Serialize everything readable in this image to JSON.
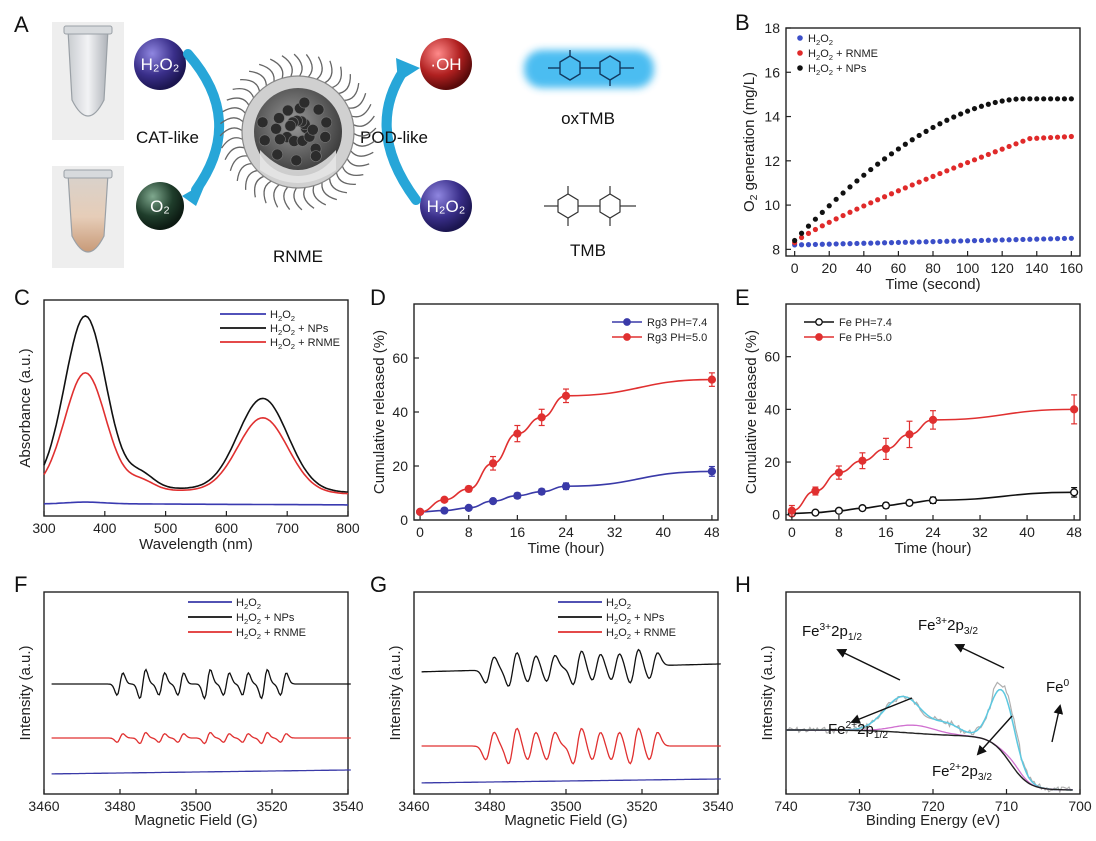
{
  "panels": {
    "A": {
      "label": "A",
      "molecule_left": "H₂O₂",
      "product_left": "O₂",
      "arrow_left_label": "CAT-like",
      "center_label": "RNME",
      "molecule_right": "H₂O₂",
      "product_right": "·OH",
      "arrow_right_label": "POD-like",
      "oxidized_label": "oxTMB",
      "reduced_label": "TMB",
      "colors": {
        "h2o2_sphere": "#3a2f8a",
        "oh_sphere": "#b02020",
        "o2_sphere": "#1f3d2b",
        "arrow": "#27a6d8",
        "oxtmb_glow": "#39b6f0"
      }
    },
    "F": {
      "label": "F",
      "type": "line",
      "xlabel": "Magnetic Field (G)",
      "ylabel": "Intensity (a.u.)",
      "xlim": [
        3460,
        3540
      ],
      "xticks": [
        "3460",
        "3480",
        "3500",
        "3520",
        "3540"
      ],
      "series": [
        {
          "name": "H₂O₂",
          "color": "#3a3aa8"
        },
        {
          "name": "H₂O₂ + NPs",
          "color": "#111111"
        },
        {
          "name": "H₂O₂ + RNME",
          "color": "#e03030"
        }
      ]
    },
    "G": {
      "label": "G",
      "type": "line",
      "xlabel": "Magnetic Field (G)",
      "ylabel": "Intensity (a.u.)",
      "xlim": [
        3460,
        3540
      ],
      "xticks": [
        "3460",
        "3480",
        "3500",
        "3520",
        "3540"
      ],
      "series": [
        {
          "name": "H₂O₂",
          "color": "#3a3aa8"
        },
        {
          "name": "H₂O₂ + NPs",
          "color": "#111111"
        },
        {
          "name": "H₂O₂ + RNME",
          "color": "#e03030"
        }
      ]
    },
    "H": {
      "label": "H",
      "type": "line",
      "xlabel": "Binding Energy (eV)",
      "ylabel": "Intensity (a.u.)",
      "xlim": [
        740,
        700
      ],
      "xticks": [
        "740",
        "730",
        "720",
        "710",
        "700"
      ],
      "annotations": [
        "Fe³⁺2p1/2",
        "Fe³⁺2p3/2",
        "Fe²⁺2p1/2",
        "Fe²⁺2p3/2",
        "Fe⁰"
      ],
      "annotation_parts": [
        {
          "main": "Fe",
          "sup": "3+",
          "mid": "2p",
          "sub": "1/2"
        },
        {
          "main": "Fe",
          "sup": "3+",
          "mid": "2p",
          "sub": "3/2"
        },
        {
          "main": "Fe",
          "sup": "2+",
          "mid": "2p",
          "sub": "1/2"
        },
        {
          "main": "Fe",
          "sup": "2+",
          "mid": "2p",
          "sub": "3/2"
        },
        {
          "main": "Fe",
          "sup": "0",
          "mid": "",
          "sub": ""
        }
      ],
      "colors": {
        "raw": "#b0b0b0",
        "fit": "#5cc8e0",
        "fe2": "#d070d0",
        "bg": "#222222"
      }
    }
  },
  "chart_data": [
    {
      "panel": "B",
      "type": "scatter",
      "xlabel": "Time (second)",
      "ylabel": "O₂ generation (mg/L)",
      "ylabel_parts": {
        "pre": "O",
        "sub": "2",
        "post": " generation (mg/L)"
      },
      "xlim": [
        -5,
        165
      ],
      "ylim": [
        7.7,
        18
      ],
      "xticks": [
        0,
        20,
        40,
        60,
        80,
        100,
        120,
        140,
        160
      ],
      "yticks": [
        8,
        10,
        12,
        14,
        16,
        18
      ],
      "legend_position": "top-left",
      "series": [
        {
          "name": "H₂O₂",
          "color": "#3c4fc8",
          "start": 8.2,
          "end": 8.5,
          "shape": "linear"
        },
        {
          "name": "H₂O₂ + RNME",
          "color": "#e02a2a",
          "start": 8.3,
          "end": 13.1,
          "shape": "rnme"
        },
        {
          "name": "H₂O₂ + NPs",
          "color": "#111111",
          "start": 8.4,
          "end": 14.8,
          "shape": "nps"
        }
      ]
    },
    {
      "panel": "C",
      "type": "line",
      "xlabel": "Wavelength (nm)",
      "ylabel": "Absorbance (a.u.)",
      "xlim": [
        300,
        800
      ],
      "xticks": [
        300,
        400,
        500,
        600,
        700,
        800
      ],
      "legend_position": "top-right",
      "series": [
        {
          "name": "H₂O₂",
          "color": "#3a3ab0",
          "peak1": 0.01,
          "peak2": 0.0,
          "base": 0.02
        },
        {
          "name": "H₂O₂ + NPs",
          "color": "#111111",
          "peak1": 0.88,
          "peak2": 0.47,
          "base": 0.1
        },
        {
          "name": "H₂O₂ + RNME",
          "color": "#e03030",
          "peak1": 0.6,
          "peak2": 0.38,
          "base": 0.09
        }
      ]
    },
    {
      "panel": "D",
      "type": "line",
      "xlabel": "Time (hour)",
      "ylabel": "Cumulative released (%)",
      "xlim": [
        -1,
        49
      ],
      "ylim": [
        0,
        80
      ],
      "xticks": [
        0,
        8,
        16,
        24,
        32,
        40,
        48
      ],
      "yticks": [
        0,
        20,
        40,
        60
      ],
      "legend_position": "top-right",
      "x": [
        0,
        4,
        8,
        12,
        16,
        20,
        24,
        48
      ],
      "series": [
        {
          "name": "Rg3 PH=7.4",
          "color": "#3a3aa8",
          "values": [
            3,
            3.5,
            4.5,
            7,
            9,
            10.5,
            12.5,
            18
          ],
          "err": [
            0.5,
            0.5,
            0.6,
            0.8,
            1,
            1,
            1.2,
            1.8
          ]
        },
        {
          "name": "Rg3 PH=5.0",
          "color": "#e03030",
          "values": [
            3,
            7.5,
            11.5,
            21,
            32,
            38,
            46,
            52
          ],
          "err": [
            0.5,
            0.8,
            1,
            2.5,
            3,
            3,
            2.5,
            2.5
          ]
        }
      ]
    },
    {
      "panel": "E",
      "type": "line",
      "xlabel": "Time (hour)",
      "ylabel": "Cumulative released (%)",
      "xlim": [
        -1,
        49
      ],
      "ylim": [
        -2,
        80
      ],
      "xticks": [
        0,
        8,
        16,
        24,
        32,
        40,
        48
      ],
      "yticks": [
        0,
        20,
        40,
        60
      ],
      "legend_position": "top-left",
      "x": [
        0,
        4,
        8,
        12,
        16,
        20,
        24,
        48
      ],
      "series": [
        {
          "name": "Fe PH=7.4",
          "color": "#111111",
          "values": [
            0.5,
            0.8,
            1.5,
            2.5,
            3.5,
            4.5,
            5.5,
            8.5
          ],
          "err": [
            0.5,
            0.5,
            0.6,
            0.8,
            1,
            1,
            1.2,
            1.8
          ]
        },
        {
          "name": "Fe PH=5.0",
          "color": "#e03030",
          "values": [
            1.5,
            9,
            16,
            20.5,
            25,
            30.5,
            36,
            40
          ],
          "err": [
            2,
            1.5,
            2.5,
            3,
            4,
            5,
            3.5,
            5.5
          ]
        }
      ]
    }
  ]
}
